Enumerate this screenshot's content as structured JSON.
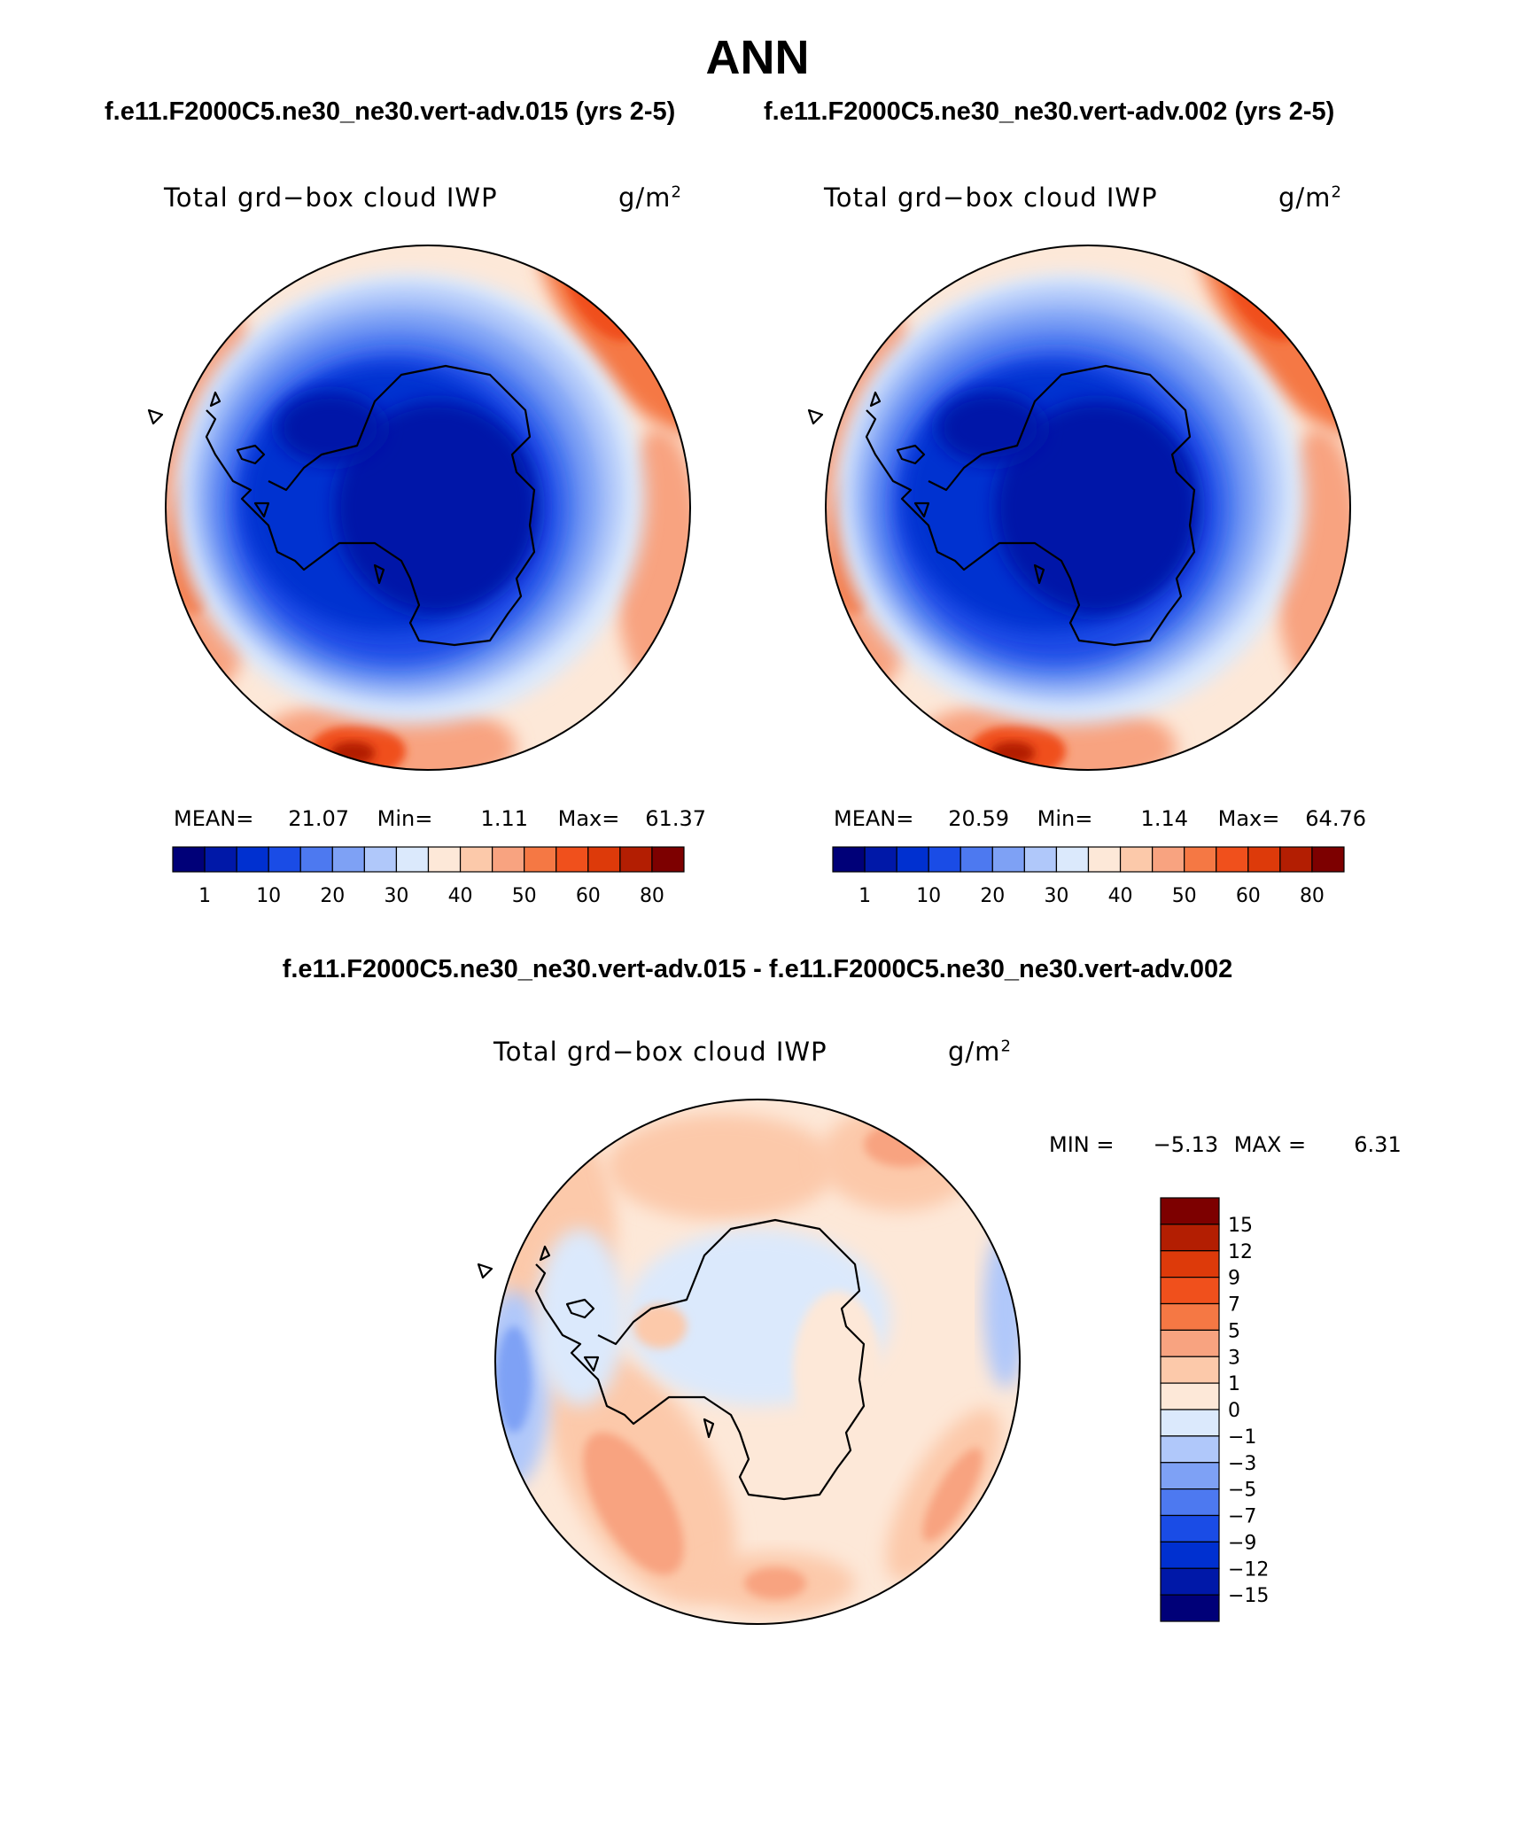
{
  "page_title": "ANN",
  "cases": {
    "left": "f.e11.F2000C5.ne30_ne30.vert-adv.015 (yrs 2-5)",
    "right": "f.e11.F2000C5.ne30_ne30.vert-adv.002 (yrs 2-5)",
    "difference": "f.e11.F2000C5.ne30_ne30.vert-adv.015 - f.e11.F2000C5.ne30_ne30.vert-adv.002"
  },
  "chart_data": [
    {
      "type": "polar-contour-map",
      "projection": "south-polar-stereographic",
      "title": "Total grd−box cloud IWP",
      "units": "g/m²",
      "stats": {
        "mean_label": "MEAN=",
        "mean": "21.07",
        "min_label": "Min=",
        "min": "1.11",
        "max_label": "Max=",
        "max": "61.37"
      },
      "colorbar": {
        "orientation": "horizontal",
        "tick_labels": [
          "1",
          "10",
          "20",
          "30",
          "40",
          "50",
          "60",
          "80"
        ],
        "colors": [
          "#000078",
          "#0018a8",
          "#0030d0",
          "#1a4ce6",
          "#4d79f0",
          "#7ea1f5",
          "#b0c8fa",
          "#dbe9fc",
          "#fde8d8",
          "#fcc9aa",
          "#f8a380",
          "#f57844",
          "#f0501c",
          "#dd3a0a",
          "#b31e02",
          "#7d0000"
        ]
      }
    },
    {
      "type": "polar-contour-map",
      "projection": "south-polar-stereographic",
      "title": "Total grd−box cloud IWP",
      "units": "g/m²",
      "stats": {
        "mean_label": "MEAN=",
        "mean": "20.59",
        "min_label": "Min=",
        "min": "1.14",
        "max_label": "Max=",
        "max": "64.76"
      },
      "colorbar": {
        "orientation": "horizontal",
        "tick_labels": [
          "1",
          "10",
          "20",
          "30",
          "40",
          "50",
          "60",
          "80"
        ],
        "colors": [
          "#000078",
          "#0018a8",
          "#0030d0",
          "#1a4ce6",
          "#4d79f0",
          "#7ea1f5",
          "#b0c8fa",
          "#dbe9fc",
          "#fde8d8",
          "#fcc9aa",
          "#f8a380",
          "#f57844",
          "#f0501c",
          "#dd3a0a",
          "#b31e02",
          "#7d0000"
        ]
      }
    },
    {
      "type": "polar-contour-map",
      "projection": "south-polar-stereographic",
      "title": "Total grd−box cloud IWP",
      "units": "g/m²",
      "stats": {
        "min_label": "MIN =",
        "min": "−5.13",
        "max_label": "MAX =",
        "max": "6.31"
      },
      "colorbar": {
        "orientation": "vertical",
        "tick_labels": [
          "15",
          "12",
          "9",
          "7",
          "5",
          "3",
          "1",
          "0",
          "−1",
          "−3",
          "−5",
          "−7",
          "−9",
          "−12",
          "−15"
        ],
        "colors": [
          "#7d0000",
          "#b31e02",
          "#dd3a0a",
          "#f0501c",
          "#f57844",
          "#f8a380",
          "#fcc9aa",
          "#fde8d8",
          "#dbe9fc",
          "#b0c8fa",
          "#7ea1f5",
          "#4d79f0",
          "#1a4ce6",
          "#0030d0",
          "#0018a8",
          "#000078"
        ]
      }
    }
  ]
}
